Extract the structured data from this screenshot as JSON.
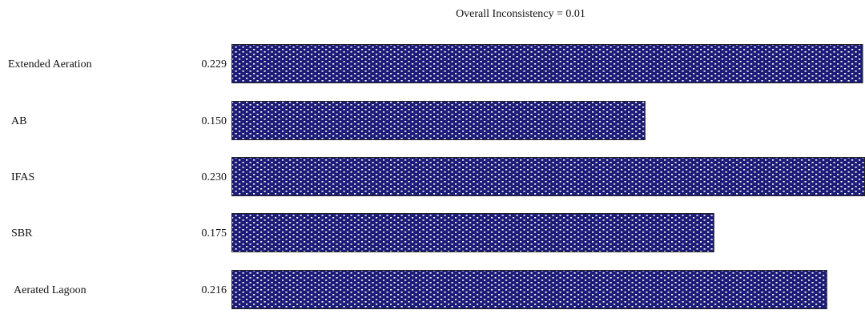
{
  "chart_data": {
    "type": "bar",
    "orientation": "horizontal",
    "title": "Overall Inconsistency = 0.01",
    "categories": [
      "Extended Aeration",
      "AB",
      "IFAS",
      "SBR",
      "Aerated Lagoon"
    ],
    "values": [
      0.229,
      0.15,
      0.23,
      0.175,
      0.216
    ],
    "value_labels": [
      "0.229",
      "0.150",
      "0.230",
      "0.175",
      "0.216"
    ],
    "xlim": [
      0,
      0.23
    ],
    "grid": false,
    "legend": "none",
    "colors": {
      "bar_fill": "#1c1c78",
      "bar_pattern_dot": "#ffffff",
      "bar_stroke": "#222222",
      "text": "#111111"
    }
  }
}
